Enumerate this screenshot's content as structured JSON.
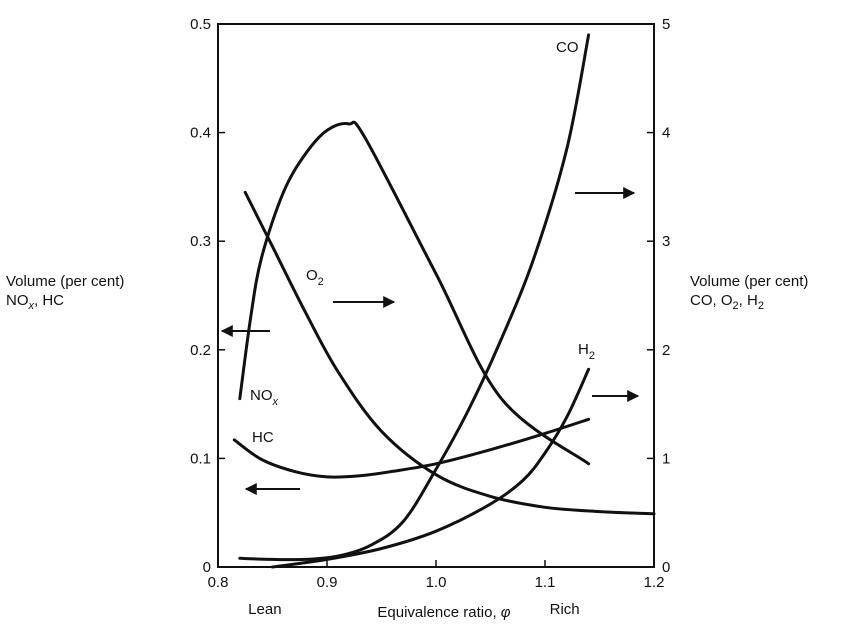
{
  "chart_data": {
    "type": "line",
    "x_label": {
      "text": "Equivalence ratio, ",
      "symbol": "φ"
    },
    "x_range": [
      0.8,
      1.2
    ],
    "x_ticks": [
      "0.8",
      "0.9",
      "1.0",
      "1.1",
      "1.2"
    ],
    "left_axis": {
      "label_line1": "Volume (per cent)",
      "label_line2": {
        "a": "NO",
        "a_sub": "x",
        "b": ", HC"
      },
      "range": [
        0,
        0.5
      ],
      "ticks": [
        "0",
        "0.1",
        "0.2",
        "0.3",
        "0.4",
        "0.5"
      ]
    },
    "right_axis": {
      "label_line1": "Volume (per cent)",
      "label_line2": {
        "a": "CO, O",
        "a_sub": "2",
        "b": ", H",
        "b_sub": "2"
      },
      "range": [
        0,
        5
      ],
      "ticks": [
        "0",
        "1",
        "2",
        "3",
        "4",
        "5"
      ]
    },
    "annotations": {
      "lean": "Lean",
      "rich": "Rich"
    },
    "grid": false,
    "series": [
      {
        "key": "nox",
        "label": "NO",
        "label_sub": "x",
        "axis": "left",
        "x": [
          0.82,
          0.83,
          0.84,
          0.86,
          0.88,
          0.9,
          0.92,
          0.935,
          1.0,
          1.06,
          1.14
        ],
        "y": [
          0.155,
          0.23,
          0.285,
          0.345,
          0.38,
          0.402,
          0.408,
          0.395,
          0.27,
          0.155,
          0.095
        ]
      },
      {
        "key": "hc",
        "label": "HC",
        "axis": "left",
        "x": [
          0.815,
          0.84,
          0.87,
          0.9,
          0.93,
          0.96,
          1.0,
          1.05,
          1.1,
          1.14
        ],
        "y": [
          0.117,
          0.099,
          0.088,
          0.083,
          0.084,
          0.088,
          0.095,
          0.108,
          0.123,
          0.136
        ]
      },
      {
        "key": "o2",
        "label": "O",
        "label_sub": "2",
        "axis": "right",
        "x": [
          0.825,
          0.85,
          0.88,
          0.91,
          0.95,
          1.0,
          1.05,
          1.1,
          1.15,
          1.2
        ],
        "y": [
          3.45,
          2.95,
          2.35,
          1.8,
          1.25,
          0.85,
          0.65,
          0.55,
          0.51,
          0.49
        ]
      },
      {
        "key": "co",
        "label": "CO",
        "axis": "right",
        "x": [
          0.82,
          0.85,
          0.88,
          0.91,
          0.94,
          0.97,
          1.0,
          1.03,
          1.06,
          1.09,
          1.12,
          1.14
        ],
        "y": [
          0.08,
          0.07,
          0.07,
          0.1,
          0.2,
          0.42,
          0.9,
          1.45,
          2.1,
          2.85,
          3.85,
          4.9
        ]
      },
      {
        "key": "h2",
        "label": "H",
        "label_sub": "2",
        "axis": "right",
        "x": [
          0.85,
          0.9,
          0.95,
          1.0,
          1.05,
          1.08,
          1.1,
          1.12,
          1.14
        ],
        "y": [
          0.0,
          0.07,
          0.17,
          0.33,
          0.58,
          0.8,
          1.05,
          1.38,
          1.82
        ]
      }
    ],
    "arrows": [
      {
        "direction": "left",
        "target_axis": "left"
      },
      {
        "direction": "left",
        "target_axis": "left"
      },
      {
        "direction": "right",
        "target_axis": "right"
      },
      {
        "direction": "right",
        "target_axis": "right"
      },
      {
        "direction": "right",
        "target_axis": "right"
      }
    ]
  }
}
